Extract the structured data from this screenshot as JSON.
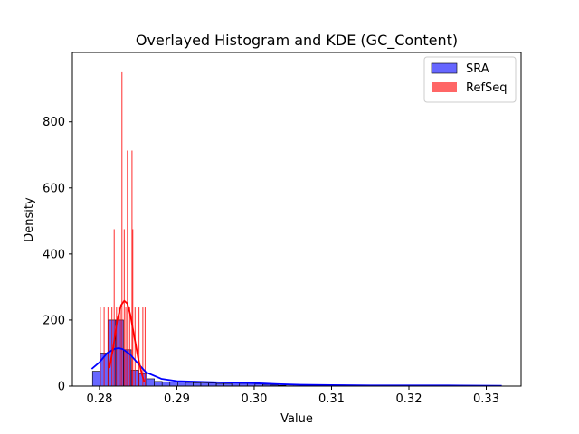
{
  "chart_data": {
    "type": "histogram",
    "title": "Overlayed Histogram and KDE (GC_Content)",
    "xlabel": "Value",
    "ylabel": "Density",
    "xlim": [
      0.2765,
      0.3345
    ],
    "ylim": [
      0,
      1010
    ],
    "xticks": [
      0.28,
      0.29,
      0.3,
      0.31,
      0.32,
      0.33
    ],
    "xtick_labels": [
      "0.28",
      "0.29",
      "0.30",
      "0.31",
      "0.32",
      "0.33"
    ],
    "yticks": [
      0,
      200,
      400,
      600,
      800
    ],
    "ytick_labels": [
      "0",
      "200",
      "400",
      "600",
      "800"
    ],
    "grid": false,
    "legend_position": "top-right",
    "series": [
      {
        "name": "SRA",
        "kind": "histogram+kde",
        "color": "#0000ff",
        "fill_alpha": 0.6,
        "bins": [
          {
            "x0": 0.2791,
            "x1": 0.2801,
            "density": 45
          },
          {
            "x0": 0.2801,
            "x1": 0.2811,
            "density": 100
          },
          {
            "x0": 0.2811,
            "x1": 0.2821,
            "density": 200
          },
          {
            "x0": 0.2821,
            "x1": 0.2831,
            "density": 200
          },
          {
            "x0": 0.2831,
            "x1": 0.2841,
            "density": 110
          },
          {
            "x0": 0.2841,
            "x1": 0.2851,
            "density": 48
          },
          {
            "x0": 0.2851,
            "x1": 0.2861,
            "density": 38
          },
          {
            "x0": 0.2861,
            "x1": 0.2871,
            "density": 22
          },
          {
            "x0": 0.2871,
            "x1": 0.2881,
            "density": 14
          },
          {
            "x0": 0.2881,
            "x1": 0.2891,
            "density": 13
          },
          {
            "x0": 0.2891,
            "x1": 0.2901,
            "density": 12
          },
          {
            "x0": 0.2901,
            "x1": 0.2911,
            "density": 12
          },
          {
            "x0": 0.2911,
            "x1": 0.2921,
            "density": 11
          },
          {
            "x0": 0.2921,
            "x1": 0.2931,
            "density": 10
          },
          {
            "x0": 0.2931,
            "x1": 0.2941,
            "density": 9
          },
          {
            "x0": 0.2941,
            "x1": 0.2951,
            "density": 9
          },
          {
            "x0": 0.2951,
            "x1": 0.2961,
            "density": 8
          },
          {
            "x0": 0.2961,
            "x1": 0.2971,
            "density": 8
          },
          {
            "x0": 0.2971,
            "x1": 0.2981,
            "density": 9
          },
          {
            "x0": 0.2981,
            "x1": 0.2991,
            "density": 8
          },
          {
            "x0": 0.2991,
            "x1": 0.3001,
            "density": 8
          },
          {
            "x0": 0.3001,
            "x1": 0.3011,
            "density": 7
          },
          {
            "x0": 0.3011,
            "x1": 0.3021,
            "density": 5
          },
          {
            "x0": 0.3021,
            "x1": 0.3031,
            "density": 3
          },
          {
            "x0": 0.3031,
            "x1": 0.3041,
            "density": 2
          },
          {
            "x0": 0.3041,
            "x1": 0.3051,
            "density": 1
          },
          {
            "x0": 0.3051,
            "x1": 0.3061,
            "density": 1
          }
        ],
        "kde": {
          "x": [
            0.279,
            0.28,
            0.281,
            0.282,
            0.2825,
            0.283,
            0.284,
            0.285,
            0.286,
            0.288,
            0.29,
            0.293,
            0.296,
            0.3,
            0.303,
            0.306,
            0.31,
            0.315,
            0.32,
            0.325,
            0.332
          ],
          "y": [
            52,
            72,
            100,
            113,
            115,
            112,
            95,
            68,
            42,
            22,
            15,
            13,
            11,
            9,
            6,
            4,
            3,
            2,
            2,
            2,
            1
          ]
        }
      },
      {
        "name": "RefSeq",
        "kind": "histogram+kde",
        "color": "#ff0000",
        "fill_alpha": 0.6,
        "spikes": [
          {
            "x": 0.2801,
            "density": 238
          },
          {
            "x": 0.2806,
            "density": 238
          },
          {
            "x": 0.2811,
            "density": 238
          },
          {
            "x": 0.2816,
            "density": 238
          },
          {
            "x": 0.2819,
            "density": 475
          },
          {
            "x": 0.2822,
            "density": 238
          },
          {
            "x": 0.2825,
            "density": 238
          },
          {
            "x": 0.2827,
            "density": 238
          },
          {
            "x": 0.2829,
            "density": 950
          },
          {
            "x": 0.2832,
            "density": 475
          },
          {
            "x": 0.2834,
            "density": 238
          },
          {
            "x": 0.2836,
            "density": 713
          },
          {
            "x": 0.2839,
            "density": 238
          },
          {
            "x": 0.2842,
            "density": 713
          },
          {
            "x": 0.2843,
            "density": 475
          },
          {
            "x": 0.2846,
            "density": 238
          },
          {
            "x": 0.2851,
            "density": 238
          },
          {
            "x": 0.2856,
            "density": 238
          },
          {
            "x": 0.2859,
            "density": 238
          }
        ],
        "kde": {
          "x": [
            0.2813,
            0.2818,
            0.2823,
            0.2828,
            0.2832,
            0.2836,
            0.284,
            0.2845,
            0.285,
            0.2855,
            0.2858
          ],
          "y": [
            55,
            120,
            200,
            245,
            258,
            250,
            215,
            150,
            85,
            35,
            12
          ]
        }
      }
    ]
  }
}
